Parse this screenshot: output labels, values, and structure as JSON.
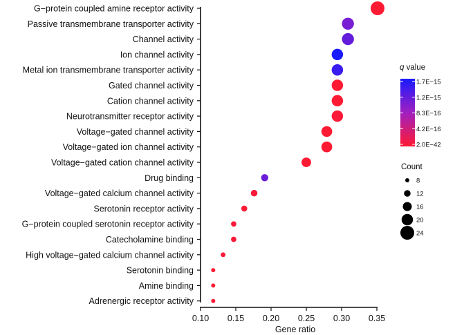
{
  "chart_data": {
    "type": "scatter",
    "title": "",
    "xlabel": "Gene ratio",
    "ylabel": "",
    "xlim": [
      0.1,
      0.35
    ],
    "xticks": [
      0.1,
      0.15,
      0.2,
      0.25,
      0.3,
      0.35
    ],
    "xtick_labels": [
      "0.10",
      "0.15",
      "0.20",
      "0.25",
      "0.30",
      "0.35"
    ],
    "grid": false,
    "categories": [
      "G−protein coupled amine receptor activity",
      "Passive transmembrane transporter activity",
      "Channel activity",
      "Ion channel activity",
      "Metal ion transmembrane transporter activity",
      "Gated channel activity",
      "Cation channel activity",
      "Neurotransmitter receptor activity",
      "Voltage−gated channel activity",
      "Voltage−gated ion channel activity",
      "Voltage−gated cation channel activity",
      "Drug binding",
      "Voltage−gated calcium channel activity",
      "Serotonin receptor activity",
      "G−protein coupled serotonin receptor activity",
      "Catecholamine binding",
      "High voltage−gated calcium channel activity",
      "Serotonin binding",
      "Amine binding",
      "Adrenergic receptor activity"
    ],
    "gene_ratio": [
      0.351,
      0.309,
      0.309,
      0.294,
      0.294,
      0.294,
      0.294,
      0.294,
      0.279,
      0.279,
      0.25,
      0.191,
      0.176,
      0.162,
      0.147,
      0.147,
      0.132,
      0.118,
      0.118,
      0.118
    ],
    "count": [
      24,
      21,
      21,
      20,
      20,
      20,
      20,
      20,
      19,
      19,
      17,
      13,
      12,
      11,
      10,
      10,
      9,
      8,
      8,
      8
    ],
    "q_color_fraction": [
      0.0,
      0.65,
      0.72,
      1.0,
      0.88,
      0.0,
      0.0,
      0.02,
      0.0,
      0.0,
      0.0,
      0.7,
      0.03,
      0.01,
      0.02,
      0.03,
      0.02,
      0.0,
      0.0,
      0.0
    ],
    "color_legend": {
      "title_italic": "q",
      "title_rest": " value",
      "tick_labels": [
        "1.7E−15",
        "1.2E−15",
        "8.3E−16",
        "4.2E−16",
        "2.0E−42"
      ],
      "color_high": "#1a1aff",
      "color_mid": "#a020c0",
      "color_low": "#ff1a33",
      "placement": "right"
    },
    "size_legend": {
      "title": "Count",
      "values": [
        8,
        12,
        16,
        20,
        24
      ],
      "labels": [
        "8",
        "12",
        "16",
        "20",
        "24"
      ],
      "placement": "right"
    }
  }
}
